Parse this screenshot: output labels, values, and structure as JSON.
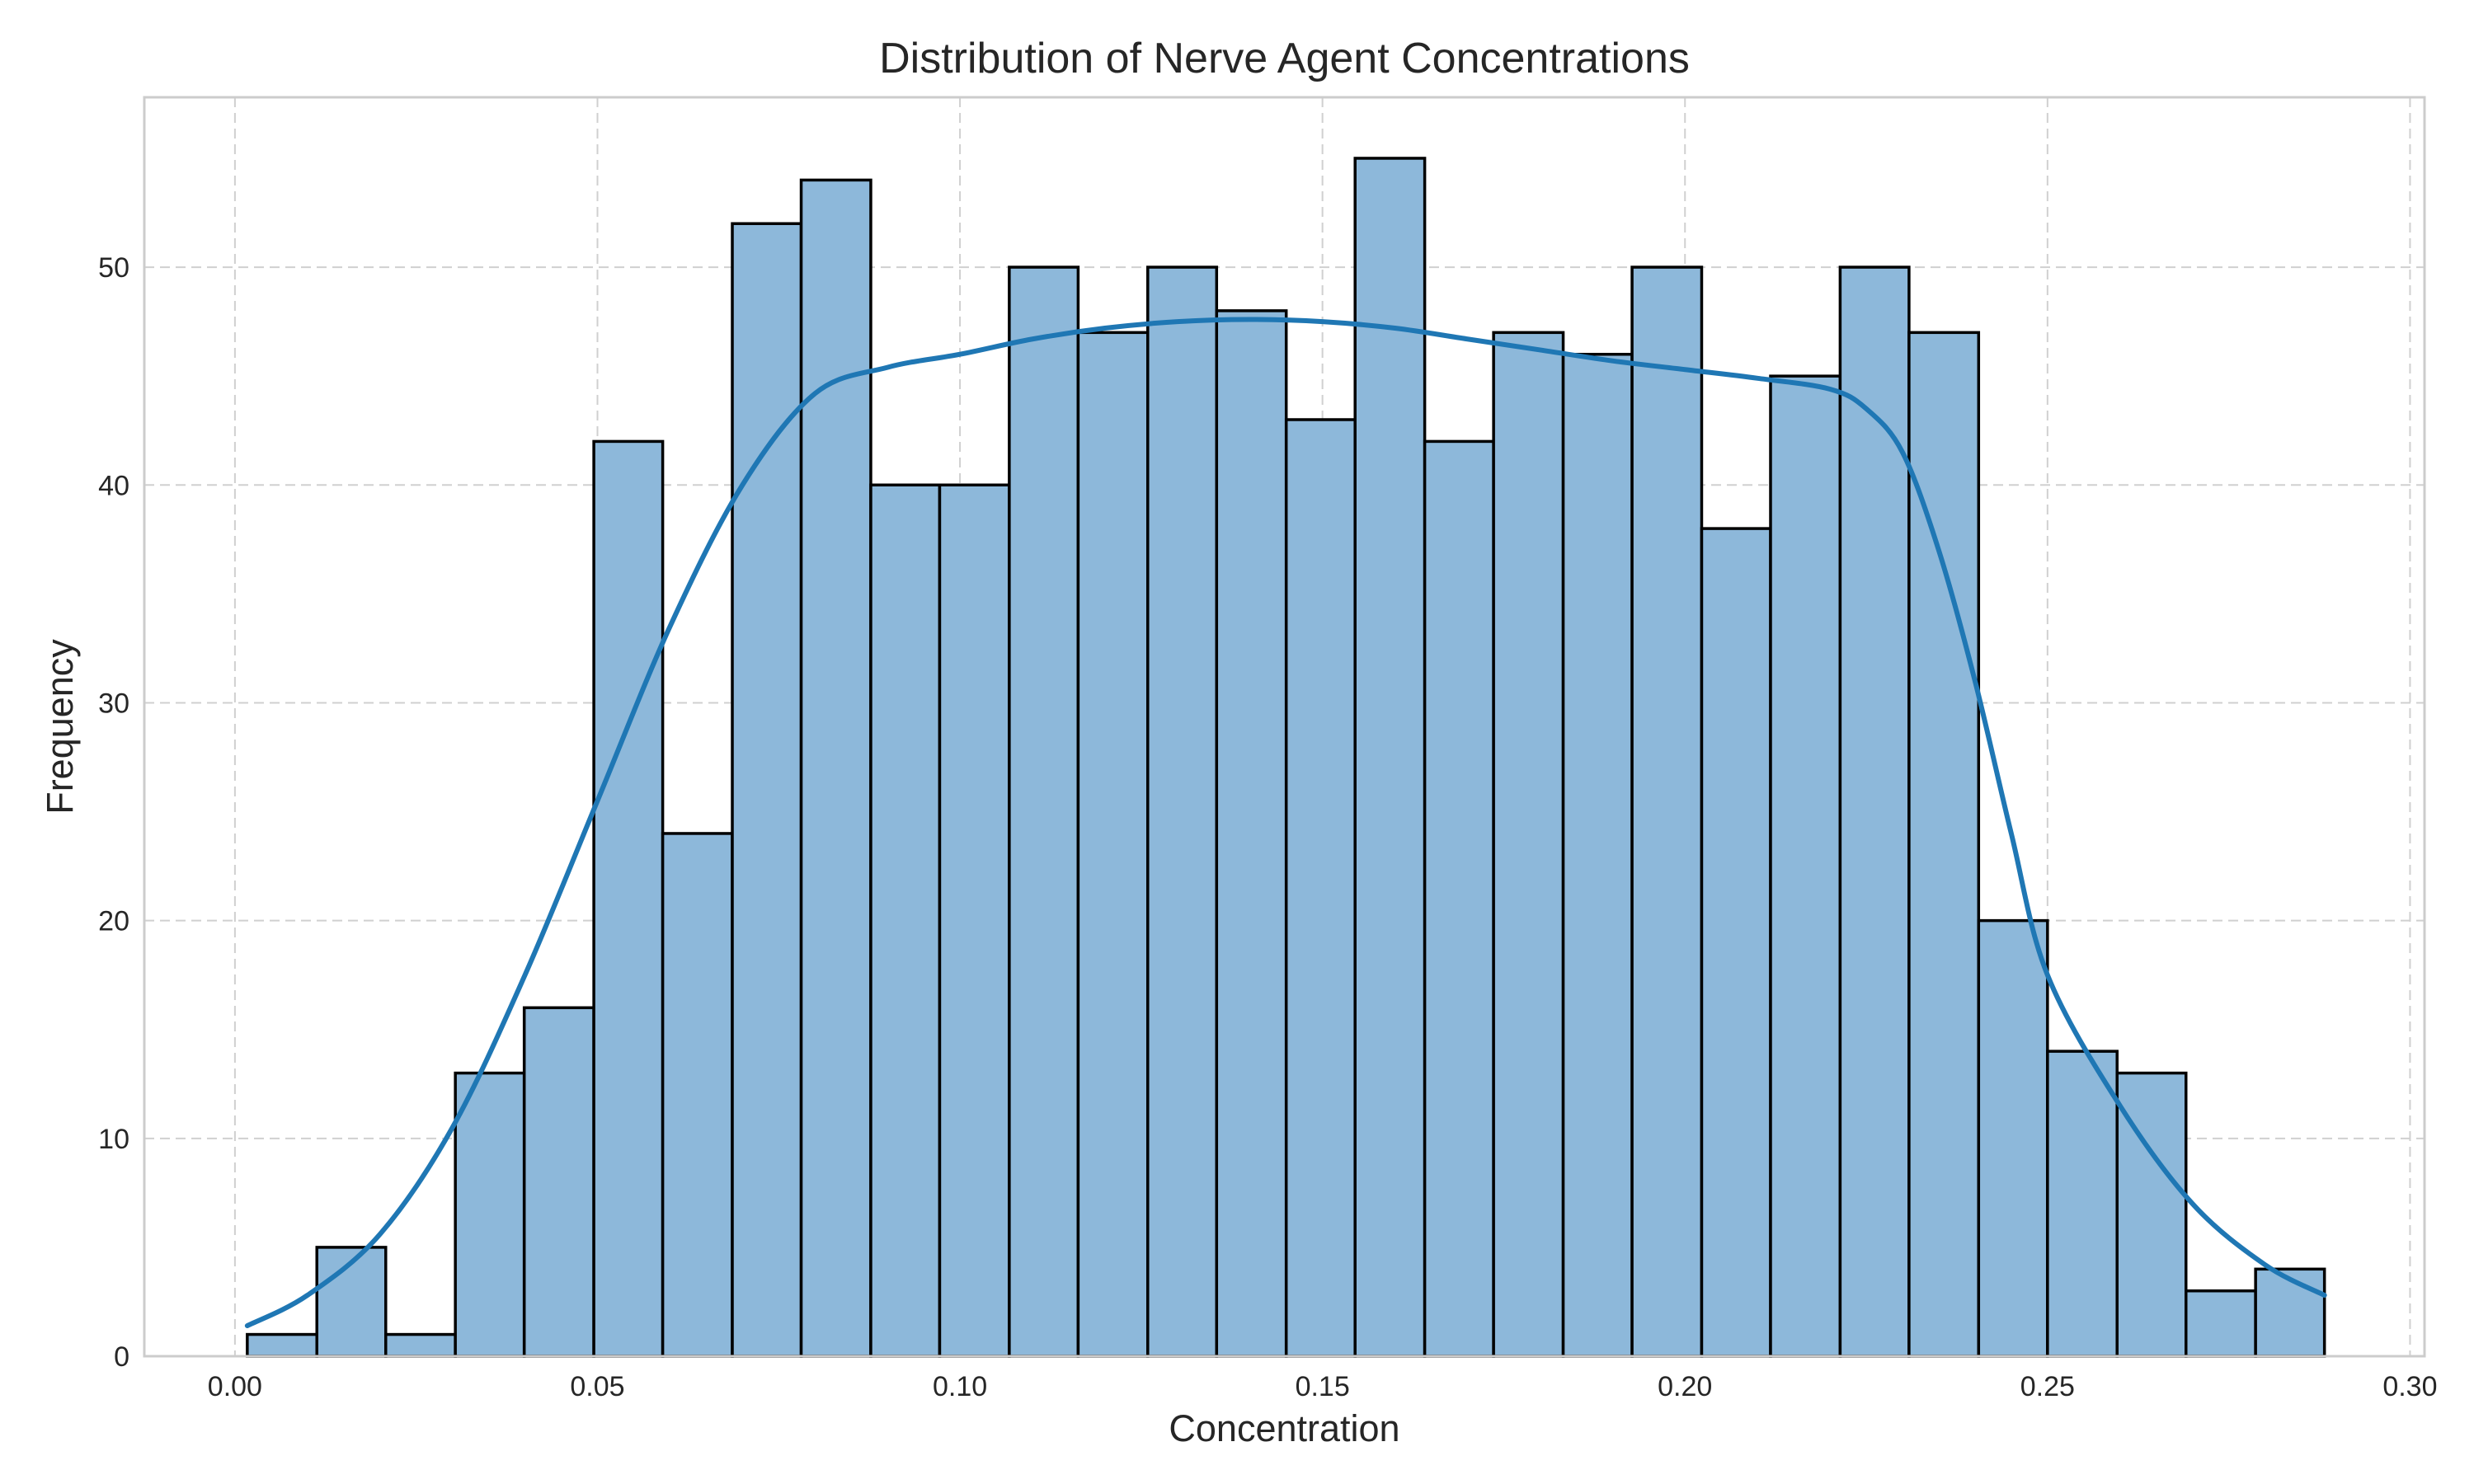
{
  "chart_data": {
    "type": "bar",
    "title": "Distribution of Nerve Agent Concentrations",
    "xlabel": "Concentration",
    "ylabel": "Frequency",
    "xlim": [
      -0.0125,
      0.302
    ],
    "ylim": [
      0,
      57.8
    ],
    "x_ticks": [
      "0.00",
      "0.05",
      "0.10",
      "0.15",
      "0.20",
      "0.25",
      "0.30"
    ],
    "x_tick_values": [
      0.0,
      0.05,
      0.1,
      0.15,
      0.2,
      0.25,
      0.3
    ],
    "y_ticks": [
      "0",
      "10",
      "20",
      "30",
      "40",
      "50"
    ],
    "y_tick_values": [
      0,
      10,
      20,
      30,
      40,
      50
    ],
    "grid": true,
    "bin_edges": [
      0.0017,
      0.0113,
      0.0208,
      0.0304,
      0.0399,
      0.0495,
      0.059,
      0.0686,
      0.0781,
      0.0877,
      0.0972,
      0.1068,
      0.1163,
      0.1259,
      0.1354,
      0.145,
      0.1545,
      0.1641,
      0.1736,
      0.1832,
      0.1927,
      0.2023,
      0.2118,
      0.2214,
      0.2309,
      0.2405,
      0.25,
      0.2596,
      0.2691,
      0.2787,
      0.2882
    ],
    "values": [
      1,
      5,
      1,
      13,
      16,
      42,
      24,
      52,
      54,
      40,
      40,
      50,
      47,
      50,
      48,
      43,
      55,
      42,
      47,
      46,
      50,
      38,
      45,
      50,
      47,
      20,
      14,
      13,
      3,
      4
    ],
    "kde": {
      "x": [
        0.0017,
        0.01,
        0.02,
        0.03,
        0.04,
        0.05,
        0.06,
        0.07,
        0.08,
        0.09,
        0.1,
        0.11,
        0.12,
        0.13,
        0.14,
        0.15,
        0.16,
        0.17,
        0.18,
        0.19,
        0.2,
        0.21,
        0.22,
        0.225,
        0.23,
        0.235,
        0.24,
        0.245,
        0.25,
        0.26,
        0.27,
        0.28,
        0.2882
      ],
      "y": [
        1.4,
        2.8,
        5.6,
        10.5,
        17.5,
        25.5,
        33.5,
        40.0,
        44.2,
        45.4,
        46.0,
        46.7,
        47.2,
        47.5,
        47.6,
        47.5,
        47.2,
        46.7,
        46.2,
        45.7,
        45.3,
        44.9,
        44.4,
        43.5,
        41.5,
        37.0,
        31.0,
        24.0,
        17.5,
        11.5,
        7.0,
        4.2,
        2.8
      ]
    }
  }
}
